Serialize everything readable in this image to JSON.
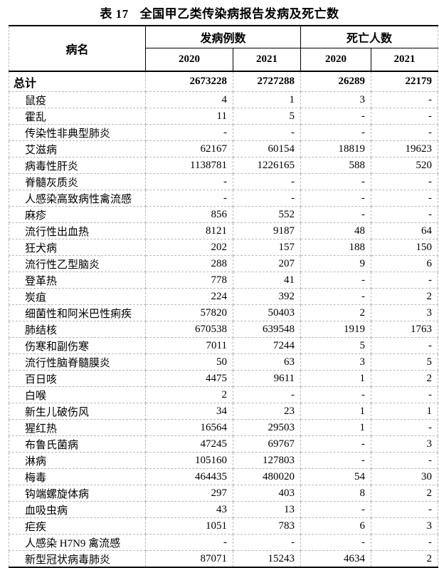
{
  "title": {
    "label": "表 17",
    "text": "全国甲乙类传染病报告发病及死亡数"
  },
  "header": {
    "name": "病名",
    "cases": "发病例数",
    "deaths": "死亡人数",
    "years": [
      "2020",
      "2021",
      "2020",
      "2021"
    ]
  },
  "rows": [
    [
      "总计",
      "2673228",
      "2727288",
      "26289",
      "22179"
    ],
    [
      "鼠疫",
      "4",
      "1",
      "3",
      "-"
    ],
    [
      "霍乱",
      "11",
      "5",
      "-",
      "-"
    ],
    [
      "传染性非典型肺炎",
      "-",
      "-",
      "-",
      "-"
    ],
    [
      "艾滋病",
      "62167",
      "60154",
      "18819",
      "19623"
    ],
    [
      "病毒性肝炎",
      "1138781",
      "1226165",
      "588",
      "520"
    ],
    [
      "脊髓灰质炎",
      "-",
      "-",
      "-",
      "-"
    ],
    [
      "人感染高致病性禽流感",
      "-",
      "-",
      "-",
      "-"
    ],
    [
      "麻疹",
      "856",
      "552",
      "-",
      "-"
    ],
    [
      "流行性出血热",
      "8121",
      "9187",
      "48",
      "64"
    ],
    [
      "狂犬病",
      "202",
      "157",
      "188",
      "150"
    ],
    [
      "流行性乙型脑炎",
      "288",
      "207",
      "9",
      "6"
    ],
    [
      "登革热",
      "778",
      "41",
      "-",
      "-"
    ],
    [
      "炭疽",
      "224",
      "392",
      "-",
      "2"
    ],
    [
      "细菌性和阿米巴性痢疾",
      "57820",
      "50403",
      "2",
      "3"
    ],
    [
      "肺结核",
      "670538",
      "639548",
      "1919",
      "1763"
    ],
    [
      "伤寒和副伤寒",
      "7011",
      "7244",
      "5",
      "-"
    ],
    [
      "流行性脑脊髓膜炎",
      "50",
      "63",
      "3",
      "5"
    ],
    [
      "百日咳",
      "4475",
      "9611",
      "1",
      "2"
    ],
    [
      "白喉",
      "2",
      "-",
      "-",
      "-"
    ],
    [
      "新生儿破伤风",
      "34",
      "23",
      "1",
      "1"
    ],
    [
      "猩红热",
      "16564",
      "29503",
      "1",
      "-"
    ],
    [
      "布鲁氏菌病",
      "47245",
      "69767",
      "-",
      "3"
    ],
    [
      "淋病",
      "105160",
      "127803",
      "-",
      "-"
    ],
    [
      "梅毒",
      "464435",
      "480020",
      "54",
      "30"
    ],
    [
      "钩端螺旋体病",
      "297",
      "403",
      "8",
      "2"
    ],
    [
      "血吸虫病",
      "43",
      "13",
      "-",
      "-"
    ],
    [
      "疟疾",
      "1051",
      "783",
      "6",
      "3"
    ],
    [
      "人感染 H7N9 禽流感",
      "-",
      "-",
      "-",
      "-"
    ],
    [
      "新型冠状病毒肺炎",
      "87071",
      "15243",
      "4634",
      "2"
    ]
  ]
}
